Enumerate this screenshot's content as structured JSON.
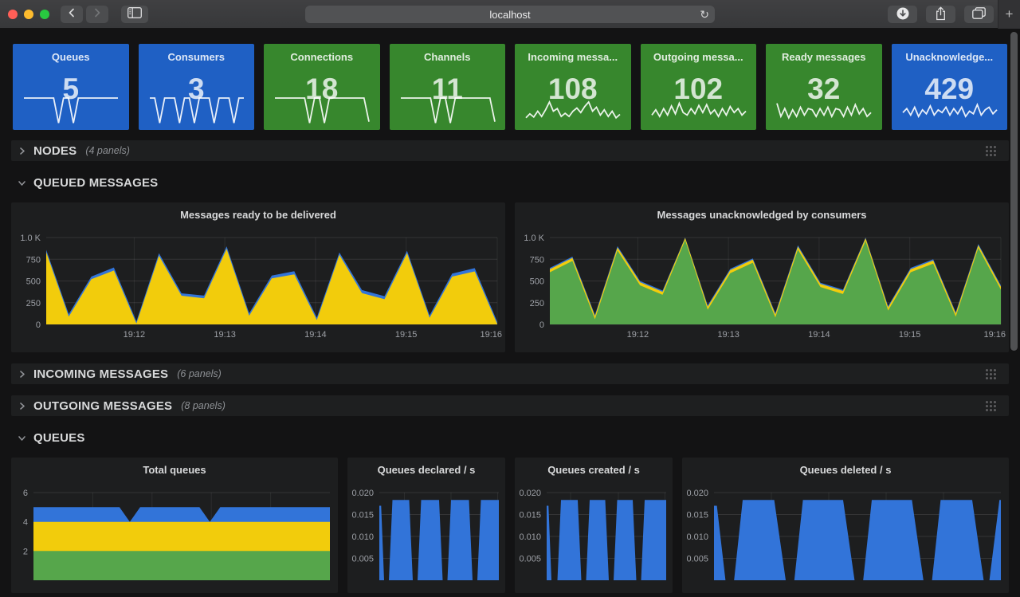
{
  "browser": {
    "url": "localhost",
    "reload_icon": "↻",
    "new_tab_icon": "+",
    "traffic_colors": {
      "close": "#FF5F57",
      "minimize": "#FEBC2E",
      "zoom": "#28C840"
    }
  },
  "tiles": [
    {
      "label": "Queues",
      "value": "5",
      "color": "#1F60C4",
      "spark": [
        1,
        1,
        1,
        1,
        1,
        1,
        1,
        0.05,
        1,
        1,
        0.05,
        1,
        1,
        1,
        1,
        1,
        1,
        1,
        1,
        1
      ]
    },
    {
      "label": "Consumers",
      "value": "3",
      "color": "#1F60C4",
      "spark": [
        1,
        1,
        0.05,
        1,
        1,
        1,
        0.05,
        1,
        1,
        0.05,
        1,
        1,
        1,
        0.05,
        1,
        1,
        1,
        0.05,
        1,
        1
      ]
    },
    {
      "label": "Connections",
      "value": "18",
      "color": "#37872D",
      "spark": [
        1,
        1,
        1,
        1,
        1,
        1,
        1,
        0.05,
        1,
        1,
        0.05,
        1,
        1,
        1,
        1,
        1,
        1,
        1,
        1,
        0.1
      ]
    },
    {
      "label": "Channels",
      "value": "11",
      "color": "#37872D",
      "spark": [
        1,
        1,
        1,
        1,
        1,
        1,
        1,
        0.05,
        1,
        1,
        0.05,
        1,
        1,
        1,
        1,
        1,
        1,
        1,
        1,
        0.1
      ]
    },
    {
      "label": "Incoming messa...",
      "value": "108",
      "color": "#37872D",
      "spark": [
        0.25,
        0.4,
        0.28,
        0.5,
        0.3,
        0.55,
        0.85,
        0.5,
        0.6,
        0.3,
        0.42,
        0.3,
        0.5,
        0.62,
        0.45,
        0.68,
        0.85,
        0.5,
        0.65,
        0.35,
        0.55,
        0.3,
        0.5,
        0.25,
        0.38
      ]
    },
    {
      "label": "Outgoing messa...",
      "value": "102",
      "color": "#37872D",
      "spark": [
        0.35,
        0.55,
        0.3,
        0.6,
        0.35,
        0.7,
        0.4,
        0.8,
        0.45,
        0.35,
        0.6,
        0.4,
        0.72,
        0.45,
        0.75,
        0.4,
        0.55,
        0.3,
        0.6,
        0.35,
        0.68,
        0.45,
        0.6,
        0.35,
        0.5
      ]
    },
    {
      "label": "Ready messages",
      "value": "32",
      "color": "#37872D",
      "spark": [
        0.8,
        0.3,
        0.6,
        0.25,
        0.55,
        0.3,
        0.65,
        0.35,
        0.6,
        0.55,
        0.3,
        0.6,
        0.35,
        0.65,
        0.3,
        0.6,
        0.55,
        0.3,
        0.65,
        0.35,
        0.75,
        0.4,
        0.6,
        0.3,
        0.45
      ]
    },
    {
      "label": "Unacknowledge...",
      "value": "429",
      "color": "#1F60C4",
      "spark": [
        0.45,
        0.6,
        0.35,
        0.65,
        0.3,
        0.55,
        0.4,
        0.7,
        0.35,
        0.55,
        0.45,
        0.65,
        0.35,
        0.6,
        0.4,
        0.65,
        0.3,
        0.5,
        0.4,
        0.75,
        0.35,
        0.55,
        0.65,
        0.4,
        0.55
      ]
    }
  ],
  "rows": [
    {
      "title": "NODES",
      "count": "(4 panels)",
      "collapsed": true
    },
    {
      "title": "QUEUED MESSAGES",
      "collapsed": false
    },
    {
      "title": "INCOMING MESSAGES",
      "count": "(6 panels)",
      "collapsed": true
    },
    {
      "title": "OUTGOING MESSAGES",
      "count": "(8 panels)",
      "collapsed": true
    },
    {
      "title": "QUEUES",
      "collapsed": false
    }
  ],
  "chart_data": [
    {
      "type": "area",
      "title": "Messages ready to be delivered",
      "ylim": [
        0,
        1000
      ],
      "grid": true,
      "legend_position": "none",
      "pad": {
        "l": 44,
        "r": 10,
        "t": 16,
        "b": 35
      },
      "yticks": [
        {
          "v": 0,
          "label": "0"
        },
        {
          "v": 250,
          "label": "250"
        },
        {
          "v": 500,
          "label": "500"
        },
        {
          "v": 750,
          "label": "750"
        },
        {
          "v": 1000,
          "label": "1.0 K"
        }
      ],
      "xticks": [
        {
          "f": 0.195,
          "label": "19:12"
        },
        {
          "f": 0.396,
          "label": "19:13"
        },
        {
          "f": 0.597,
          "label": "19:14"
        },
        {
          "f": 0.798,
          "label": "19:15"
        },
        {
          "f": 1,
          "label": "19:16"
        }
      ],
      "series": [
        {
          "name": "line-upper",
          "color": "#3274D9",
          "values": [
            858,
            118,
            550,
            655,
            35,
            818,
            358,
            332,
            898,
            128,
            562,
            612,
            78,
            828,
            395,
            325,
            848,
            103,
            585,
            648,
            30
          ]
        },
        {
          "name": "ready",
          "color": "#F2CC0C",
          "values": [
            830,
            90,
            520,
            620,
            10,
            790,
            330,
            300,
            870,
            100,
            530,
            575,
            50,
            800,
            360,
            290,
            820,
            75,
            550,
            610,
            5
          ]
        }
      ]
    },
    {
      "type": "area",
      "title": "Messages unacknowledged by consumers",
      "ylim": [
        0,
        1000
      ],
      "grid": true,
      "legend_position": "none",
      "pad": {
        "l": 44,
        "r": 10,
        "t": 16,
        "b": 35
      },
      "yticks": [
        {
          "v": 0,
          "label": "0"
        },
        {
          "v": 250,
          "label": "250"
        },
        {
          "v": 500,
          "label": "500"
        },
        {
          "v": 750,
          "label": "750"
        },
        {
          "v": 1000,
          "label": "1.0 K"
        }
      ],
      "xticks": [
        {
          "f": 0.195,
          "label": "19:12"
        },
        {
          "f": 0.396,
          "label": "19:13"
        },
        {
          "f": 0.597,
          "label": "19:14"
        },
        {
          "f": 0.798,
          "label": "19:15"
        },
        {
          "f": 1,
          "label": "19:16"
        }
      ],
      "series": [
        {
          "name": "line-top",
          "color": "#3274D9",
          "values": [
            650,
            780,
            110,
            900,
            500,
            390,
            1000,
            220,
            640,
            760,
            130,
            910,
            480,
            400,
            1000,
            210,
            650,
            750,
            140,
            926,
            450
          ]
        },
        {
          "name": "line-mid",
          "color": "#F2CC0C",
          "values": [
            635,
            765,
            95,
            885,
            485,
            375,
            995,
            205,
            625,
            745,
            115,
            895,
            465,
            385,
            992,
            195,
            635,
            735,
            125,
            912,
            435
          ]
        },
        {
          "name": "unacknowledged",
          "color": "#56A64B",
          "values": [
            600,
            730,
            60,
            850,
            450,
            340,
            970,
            170,
            590,
            710,
            80,
            860,
            430,
            350,
            960,
            160,
            600,
            700,
            90,
            880,
            400
          ]
        }
      ]
    },
    {
      "type": "area",
      "title": "Total queues",
      "ylim": [
        0,
        6
      ],
      "grid": true,
      "pad": {
        "l": 28,
        "r": 10,
        "t": 16,
        "b": 16
      },
      "yticks": [
        {
          "v": 2,
          "label": "2"
        },
        {
          "v": 4,
          "label": "4"
        },
        {
          "v": 6,
          "label": "6"
        }
      ],
      "xticks": [
        {
          "f": 0.2
        },
        {
          "f": 0.4
        },
        {
          "f": 0.6
        },
        {
          "f": 0.8
        }
      ],
      "series": [
        {
          "name": "top-band",
          "color": "#3274D9",
          "points": [
            [
              0,
              5
            ],
            [
              29,
              5
            ],
            [
              32.5,
              4
            ],
            [
              36,
              5
            ],
            [
              56,
              5
            ],
            [
              59.5,
              4
            ],
            [
              63,
              5
            ],
            [
              100,
              5
            ]
          ]
        },
        {
          "name": "mid-band",
          "color": "#F2CC0C",
          "points": [
            [
              0,
              4
            ],
            [
              100,
              4
            ]
          ]
        },
        {
          "name": "base-band",
          "color": "#56A64B",
          "points": [
            [
              0,
              2
            ],
            [
              100,
              2
            ]
          ]
        }
      ]
    },
    {
      "type": "area",
      "title": "Queues declared / s",
      "ylim": [
        0,
        0.02
      ],
      "grid": true,
      "pad": {
        "l": 40,
        "r": 8,
        "t": 16,
        "b": 16
      },
      "yticks": [
        {
          "v": 0.005,
          "label": "0.005"
        },
        {
          "v": 0.01,
          "label": "0.010"
        },
        {
          "v": 0.015,
          "label": "0.015"
        },
        {
          "v": 0.02,
          "label": "0.020"
        }
      ],
      "xticks": [
        {
          "f": 0.21
        },
        {
          "f": 0.6
        },
        {
          "f": 0.99
        }
      ],
      "series": [
        {
          "name": "declared",
          "color": "#3274D9",
          "points": [
            [
              0,
              0.017
            ],
            [
              1.5,
              0.017
            ],
            [
              4,
              0
            ],
            [
              8,
              0
            ],
            [
              11,
              0.0183
            ],
            [
              25,
              0.0183
            ],
            [
              28,
              0
            ],
            [
              32,
              0
            ],
            [
              35,
              0.0183
            ],
            [
              50,
              0.0183
            ],
            [
              53,
              0
            ],
            [
              57,
              0
            ],
            [
              60,
              0.0183
            ],
            [
              75,
              0.0183
            ],
            [
              78,
              0
            ],
            [
              82,
              0
            ],
            [
              85,
              0.0183
            ],
            [
              100,
              0.0183
            ]
          ]
        }
      ]
    },
    {
      "type": "area",
      "title": "Queues created / s",
      "ylim": [
        0,
        0.02
      ],
      "grid": true,
      "pad": {
        "l": 40,
        "r": 8,
        "t": 16,
        "b": 16
      },
      "yticks": [
        {
          "v": 0.005,
          "label": "0.005"
        },
        {
          "v": 0.01,
          "label": "0.010"
        },
        {
          "v": 0.015,
          "label": "0.015"
        },
        {
          "v": 0.02,
          "label": "0.020"
        }
      ],
      "xticks": [
        {
          "f": 0.2
        },
        {
          "f": 0.6
        },
        {
          "f": 0.99
        }
      ],
      "series": [
        {
          "name": "created",
          "color": "#3274D9",
          "points": [
            [
              0,
              0.017
            ],
            [
              1.5,
              0.017
            ],
            [
              4,
              0
            ],
            [
              9,
              0
            ],
            [
              12,
              0.0183
            ],
            [
              26,
              0.0183
            ],
            [
              29,
              0
            ],
            [
              33,
              0
            ],
            [
              36,
              0.0183
            ],
            [
              49,
              0.0183
            ],
            [
              52,
              0
            ],
            [
              56,
              0
            ],
            [
              59,
              0.0183
            ],
            [
              72,
              0.0183
            ],
            [
              75,
              0
            ],
            [
              79,
              0
            ],
            [
              82,
              0.0183
            ],
            [
              100,
              0.0183
            ]
          ]
        }
      ]
    },
    {
      "type": "area",
      "title": "Queues deleted / s",
      "ylim": [
        0,
        0.02
      ],
      "grid": true,
      "pad": {
        "l": 40,
        "r": 10,
        "t": 16,
        "b": 16
      },
      "yticks": [
        {
          "v": 0.005,
          "label": "0.005"
        },
        {
          "v": 0.01,
          "label": "0.010"
        },
        {
          "v": 0.015,
          "label": "0.015"
        },
        {
          "v": 0.02,
          "label": "0.020"
        }
      ],
      "xticks": [
        {
          "f": 0.2
        },
        {
          "f": 0.4
        },
        {
          "f": 0.6
        },
        {
          "f": 0.8
        }
      ],
      "series": [
        {
          "name": "deleted",
          "color": "#3274D9",
          "points": [
            [
              0,
              0.017
            ],
            [
              1,
              0.017
            ],
            [
              4,
              0
            ],
            [
              7,
              0
            ],
            [
              10,
              0.0183
            ],
            [
              21,
              0.0183
            ],
            [
              25,
              0
            ],
            [
              28,
              0
            ],
            [
              31,
              0.0183
            ],
            [
              45,
              0.0183
            ],
            [
              49,
              0
            ],
            [
              52,
              0
            ],
            [
              55,
              0.0183
            ],
            [
              69,
              0.0183
            ],
            [
              73,
              0
            ],
            [
              76,
              0
            ],
            [
              79,
              0.0183
            ],
            [
              90,
              0.0183
            ],
            [
              94,
              0
            ],
            [
              96,
              0
            ],
            [
              99.5,
              0.0183
            ],
            [
              100,
              0.0183
            ]
          ]
        }
      ]
    }
  ]
}
